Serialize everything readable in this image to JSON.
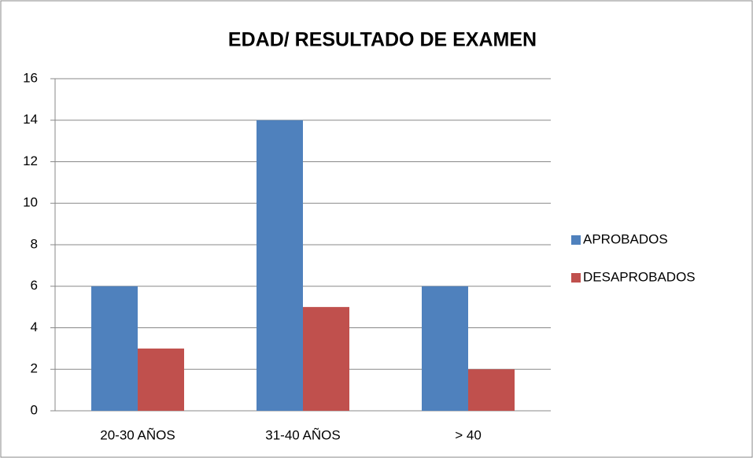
{
  "chart_data": {
    "type": "bar",
    "title": "EDAD/ RESULTADO DE EXAMEN",
    "categories": [
      "20-30 AÑOS",
      "31-40 AÑOS",
      "> 40"
    ],
    "series": [
      {
        "name": "APROBADOS",
        "color": "#4f81bd",
        "values": [
          6,
          14,
          6
        ]
      },
      {
        "name": "DESAPROBADOS",
        "color": "#c0504d",
        "values": [
          3,
          5,
          2
        ]
      }
    ],
    "ylim": [
      0,
      16
    ],
    "yticks": [
      0,
      2,
      4,
      6,
      8,
      10,
      12,
      14,
      16
    ],
    "grid": true,
    "legend": "right"
  }
}
